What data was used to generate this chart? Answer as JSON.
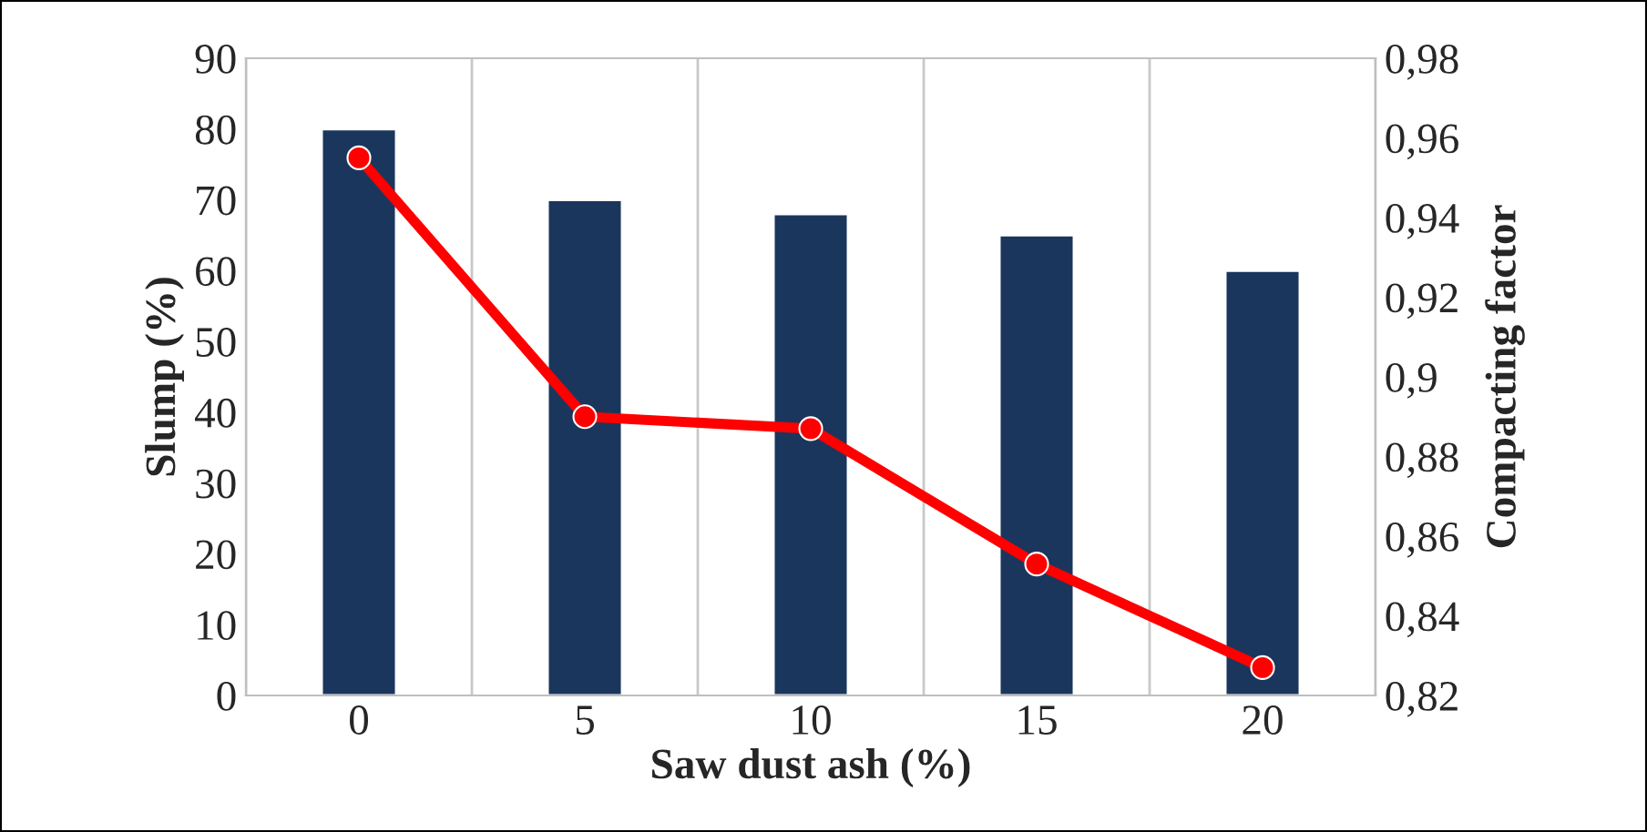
{
  "chart_data": {
    "type": "bar",
    "xlabel": "Saw dust ash (%)",
    "ylabel": "Slump (%)",
    "y2label": "Compacting factor",
    "categories": [
      "0",
      "5",
      "10",
      "15",
      "20"
    ],
    "series": [
      {
        "color": "#1b365d",
        "values": [
          80,
          70,
          68,
          65,
          60
        ]
      },
      {
        "type": "line",
        "axis": "y2",
        "color": "#ff0000",
        "marker": "circle",
        "line_style": "solid",
        "values": [
          0.955,
          0.89,
          0.887,
          0.853,
          0.827
        ]
      }
    ],
    "ylim": [
      0,
      90
    ],
    "yticks": [
      0,
      10,
      20,
      30,
      40,
      50,
      60,
      70,
      80,
      90
    ],
    "y2lim": [
      0.82,
      0.98
    ],
    "y2ticks": [
      {
        "value": 0.82,
        "label": "0,82"
      },
      {
        "value": 0.84,
        "label": "0,84"
      },
      {
        "value": 0.86,
        "label": "0,86"
      },
      {
        "value": 0.88,
        "label": "0,88"
      },
      {
        "value": 0.9,
        "label": "0,9"
      },
      {
        "value": 0.92,
        "label": "0,92"
      },
      {
        "value": 0.94,
        "label": "0,94"
      },
      {
        "value": 0.96,
        "label": "0,96"
      },
      {
        "value": 0.98,
        "label": "0,98"
      }
    ],
    "grid": "x",
    "legend": false
  }
}
